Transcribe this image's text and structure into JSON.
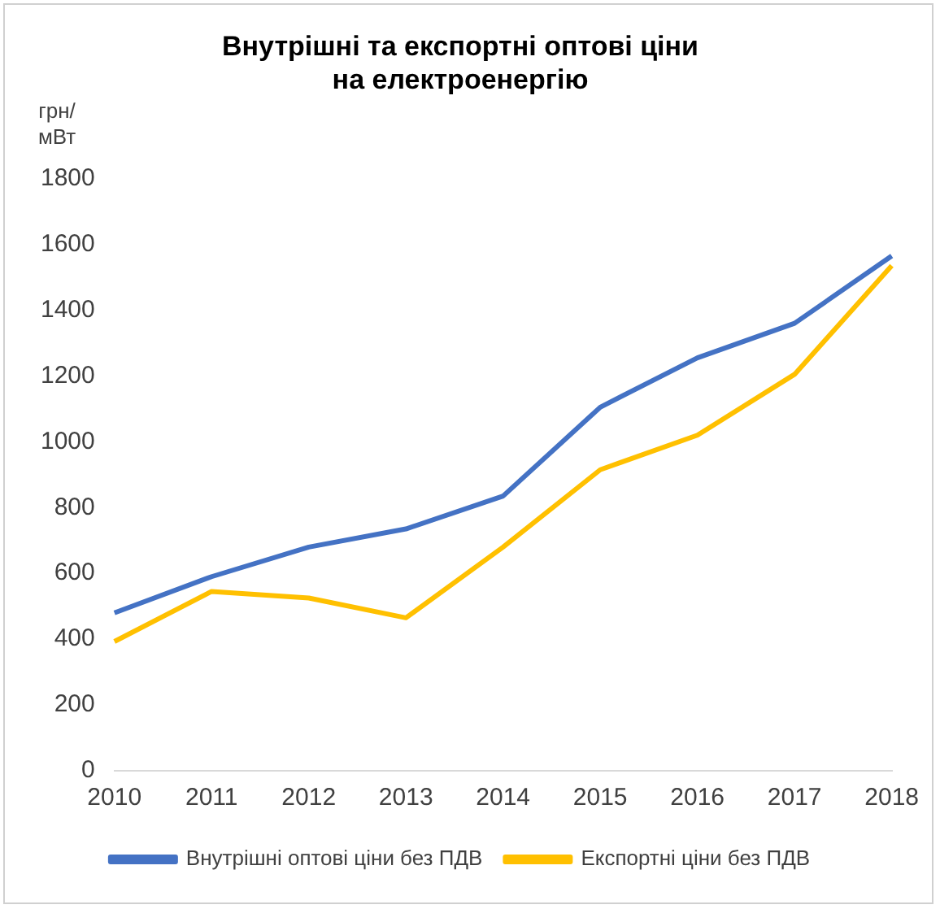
{
  "chart_data": {
    "type": "line",
    "title": "Внутрішні та експортні оптові ціни на електроенергію",
    "ylabel": "грн/ мВт",
    "categories": [
      "2010",
      "2011",
      "2012",
      "2013",
      "2014",
      "2015",
      "2016",
      "2017",
      "2018"
    ],
    "ylim": [
      0,
      1800
    ],
    "yticks": [
      0,
      200,
      400,
      600,
      800,
      1000,
      1200,
      1400,
      1600,
      1800
    ],
    "grid": false,
    "legend": "bottom",
    "marker": "none",
    "line_style": "solid",
    "series": [
      {
        "name": "Внутрішні оптові ціни без ПДВ",
        "color": "#4472c4",
        "values": [
          480,
          590,
          680,
          735,
          835,
          1105,
          1255,
          1360,
          1565
        ]
      },
      {
        "name": "Експортні ціни без ПДВ",
        "color": "#ffc000",
        "values": [
          393,
          545,
          525,
          465,
          680,
          915,
          1020,
          1205,
          1535
        ]
      }
    ]
  }
}
